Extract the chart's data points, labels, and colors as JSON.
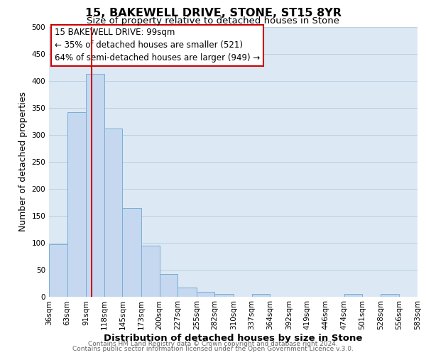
{
  "title": "15, BAKEWELL DRIVE, STONE, ST15 8YR",
  "subtitle": "Size of property relative to detached houses in Stone",
  "xlabel": "Distribution of detached houses by size in Stone",
  "ylabel": "Number of detached properties",
  "bin_edges": [
    36,
    63,
    91,
    118,
    145,
    173,
    200,
    227,
    255,
    282,
    310,
    337,
    364,
    392,
    419,
    446,
    474,
    501,
    528,
    556,
    583
  ],
  "bar_heights": [
    97,
    342,
    413,
    311,
    164,
    94,
    42,
    16,
    9,
    5,
    0,
    4,
    0,
    0,
    0,
    0,
    5,
    0,
    5,
    0
  ],
  "bar_color": "#c5d8f0",
  "bar_edge_color": "#7aadd4",
  "property_line_x": 99,
  "property_line_color": "#cc0000",
  "ylim": [
    0,
    500
  ],
  "yticks": [
    0,
    50,
    100,
    150,
    200,
    250,
    300,
    350,
    400,
    450,
    500
  ],
  "annotation_title": "15 BAKEWELL DRIVE: 99sqm",
  "annotation_line1": "← 35% of detached houses are smaller (521)",
  "annotation_line2": "64% of semi-detached houses are larger (949) →",
  "footer_line1": "Contains HM Land Registry data © Crown copyright and database right 2024.",
  "footer_line2": "Contains public sector information licensed under the Open Government Licence v.3.0.",
  "plot_bg_color": "#dce9f5",
  "background_color": "#ffffff",
  "grid_color": "#b8cfe0",
  "title_fontsize": 11.5,
  "subtitle_fontsize": 9.5,
  "xlabel_fontsize": 9.5,
  "ylabel_fontsize": 9,
  "tick_fontsize": 7.5,
  "annotation_fontsize": 8.5,
  "footer_fontsize": 6.5
}
